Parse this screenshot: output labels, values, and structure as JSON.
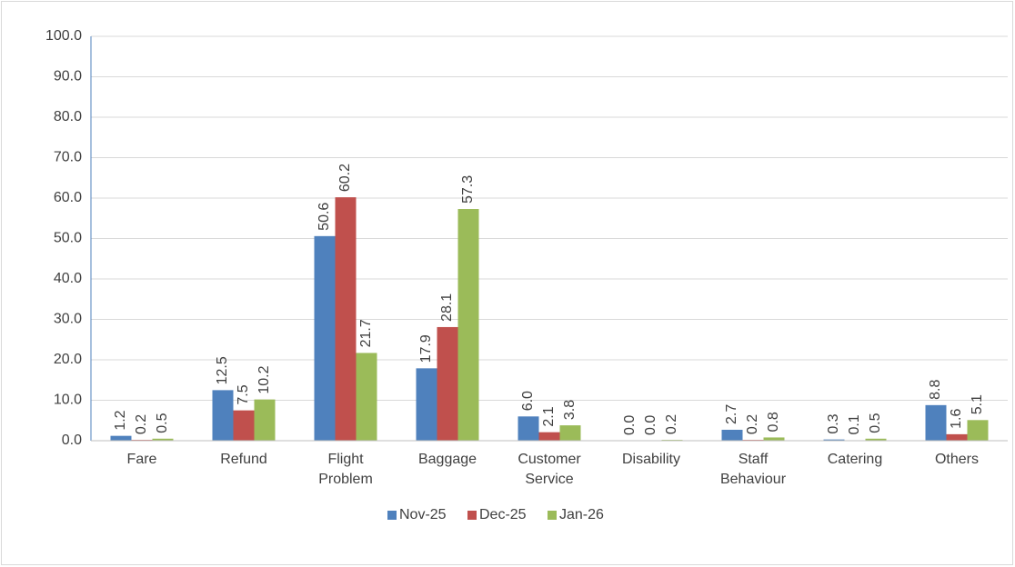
{
  "chart_data": {
    "type": "bar",
    "categories": [
      "Fare",
      "Refund",
      "Flight Problem",
      "Baggage",
      "Customer Service",
      "Disability",
      "Staff Behaviour",
      "Catering",
      "Others"
    ],
    "series": [
      {
        "name": "Nov-25",
        "color": "#4f81bd",
        "values": [
          1.2,
          12.5,
          50.6,
          17.9,
          6.0,
          0.0,
          2.7,
          0.3,
          8.8
        ],
        "value_labels": [
          "1.2",
          "12.5",
          "50.6",
          "17.9",
          "6.0",
          "0.0",
          "2.7",
          "0.3",
          "8.8"
        ]
      },
      {
        "name": "Dec-25",
        "color": "#c0504d",
        "values": [
          0.2,
          7.5,
          60.2,
          28.1,
          2.1,
          0.0,
          0.2,
          0.1,
          1.6
        ],
        "value_labels": [
          "0.2",
          "7.5",
          "60.2",
          "28.1",
          "2.1",
          "0.0",
          "0.2",
          "0.1",
          "1.6"
        ]
      },
      {
        "name": "Jan-26",
        "color": "#9bbb59",
        "values": [
          0.5,
          10.2,
          21.7,
          57.3,
          3.8,
          0.2,
          0.8,
          0.5,
          5.1
        ],
        "value_labels": [
          "0.5",
          "10.2",
          "21.7",
          "57.3",
          "3.8",
          "0.2",
          "0.8",
          "0.5",
          "5.1"
        ]
      }
    ],
    "ylim": [
      0,
      100
    ],
    "yticks": [
      {
        "value": 0,
        "label": "0.0"
      },
      {
        "value": 10,
        "label": "10.0"
      },
      {
        "value": 20,
        "label": "20.0"
      },
      {
        "value": 30,
        "label": "30.0"
      },
      {
        "value": 40,
        "label": "40.0"
      },
      {
        "value": 50,
        "label": "50.0"
      },
      {
        "value": 60,
        "label": "60.0"
      },
      {
        "value": 70,
        "label": "70.0"
      },
      {
        "value": 80,
        "label": "80.0"
      },
      {
        "value": 90,
        "label": "90.0"
      },
      {
        "value": 100,
        "label": "100.0"
      }
    ],
    "grid": true,
    "legend": "bottom"
  }
}
